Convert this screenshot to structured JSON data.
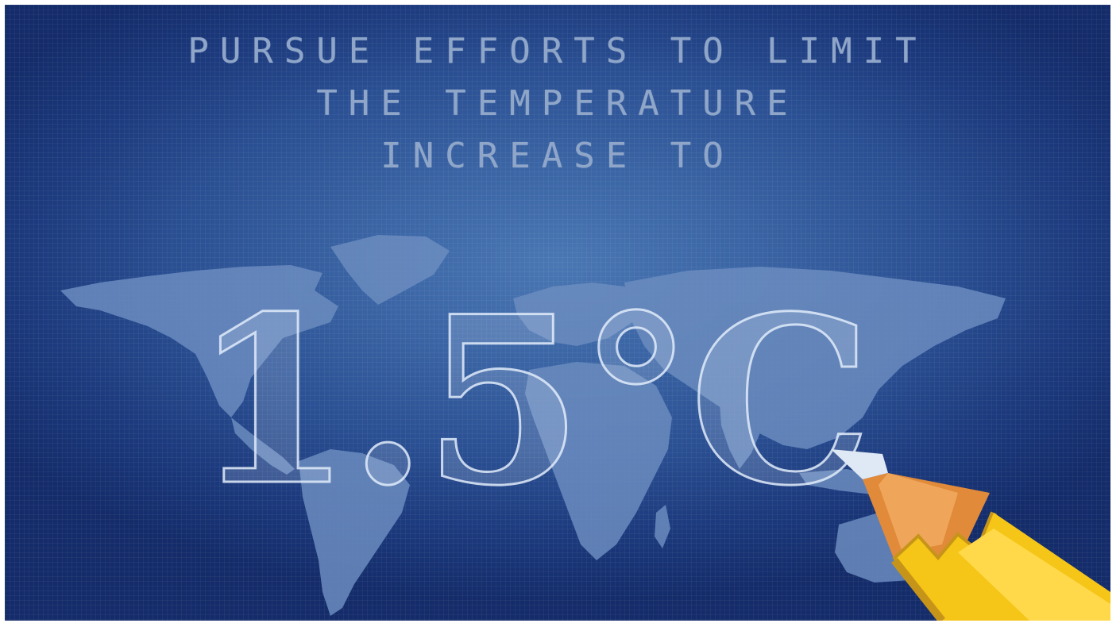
{
  "headline": {
    "line1": "PURSUE EFFORTS TO LIMIT",
    "line2": "THE TEMPERATURE",
    "line3": "INCREASE TO"
  },
  "temperature": {
    "value": "1.5°C"
  },
  "colors": {
    "background_center": "#4a77b3",
    "background_edge": "#142c6a",
    "headline_text": "#8fa6c9",
    "continents": "#6b8cbf",
    "sketch_text": "#e2ecfa",
    "pencil_body": "#f5c518",
    "pencil_wood": "#e08a3a"
  },
  "icons": {
    "world_map": "world-map-icon",
    "pencil": "pencil-icon"
  }
}
